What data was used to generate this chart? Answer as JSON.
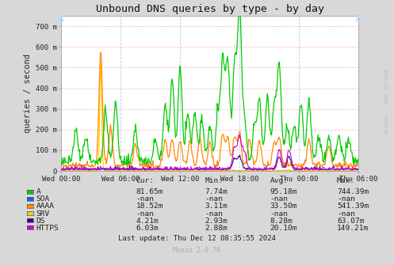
{
  "title": "Unbound DNS queries by type - by day",
  "ylabel": "queries / second",
  "background_color": "#d8d8d8",
  "plot_bg_color": "#ffffff",
  "grid_h_color": "#ffb0b0",
  "grid_v_color": "#b0b0ff",
  "ylim": [
    0,
    750
  ],
  "yticks": [
    0,
    100,
    200,
    300,
    400,
    500,
    600,
    700
  ],
  "ytick_labels": [
    "0",
    "100 m",
    "200 m",
    "300 m",
    "400 m",
    "500 m",
    "600 m",
    "700 m"
  ],
  "xtick_positions": [
    0,
    6,
    12,
    18,
    24,
    30
  ],
  "xtick_labels": [
    "Wed 00:00",
    "Wed 06:00",
    "Wed 12:00",
    "Wed 18:00",
    "Thu 00:00",
    "Thu 06:00"
  ],
  "series_order": [
    "A",
    "SOA",
    "AAAA",
    "SRV",
    "DS",
    "HTTPS"
  ],
  "series_colors": {
    "A": "#00cc00",
    "SOA": "#0066ff",
    "AAAA": "#ff8800",
    "SRV": "#ffcc00",
    "DS": "#330099",
    "HTTPS": "#cc00cc"
  },
  "legend": [
    {
      "label": "A",
      "color": "#00cc00",
      "cur": "81.65m",
      "min": "7.74m",
      "avg": "95.18m",
      "max": "744.39m"
    },
    {
      "label": "SOA",
      "color": "#0066ff",
      "cur": "-nan",
      "min": "-nan",
      "avg": "-nan",
      "max": "-nan"
    },
    {
      "label": "AAAA",
      "color": "#ff8800",
      "cur": "18.52m",
      "min": "3.11m",
      "avg": "33.50m",
      "max": "541.39m"
    },
    {
      "label": "SRV",
      "color": "#ffcc00",
      "cur": "-nan",
      "min": "-nan",
      "avg": "-nan",
      "max": "-nan"
    },
    {
      "label": "DS",
      "color": "#330099",
      "cur": "4.21m",
      "min": "2.93m",
      "avg": "8.28m",
      "max": "63.07m"
    },
    {
      "label": "HTTPS",
      "color": "#cc00cc",
      "cur": "6.03m",
      "min": "2.88m",
      "avg": "20.10m",
      "max": "149.21m"
    }
  ],
  "watermark": "RRDTOOL / TOBI OETIKER",
  "munin_version": "Munin 2.0.76",
  "last_update": "Last update: Thu Dec 12 08:35:55 2024",
  "n_points": 500
}
